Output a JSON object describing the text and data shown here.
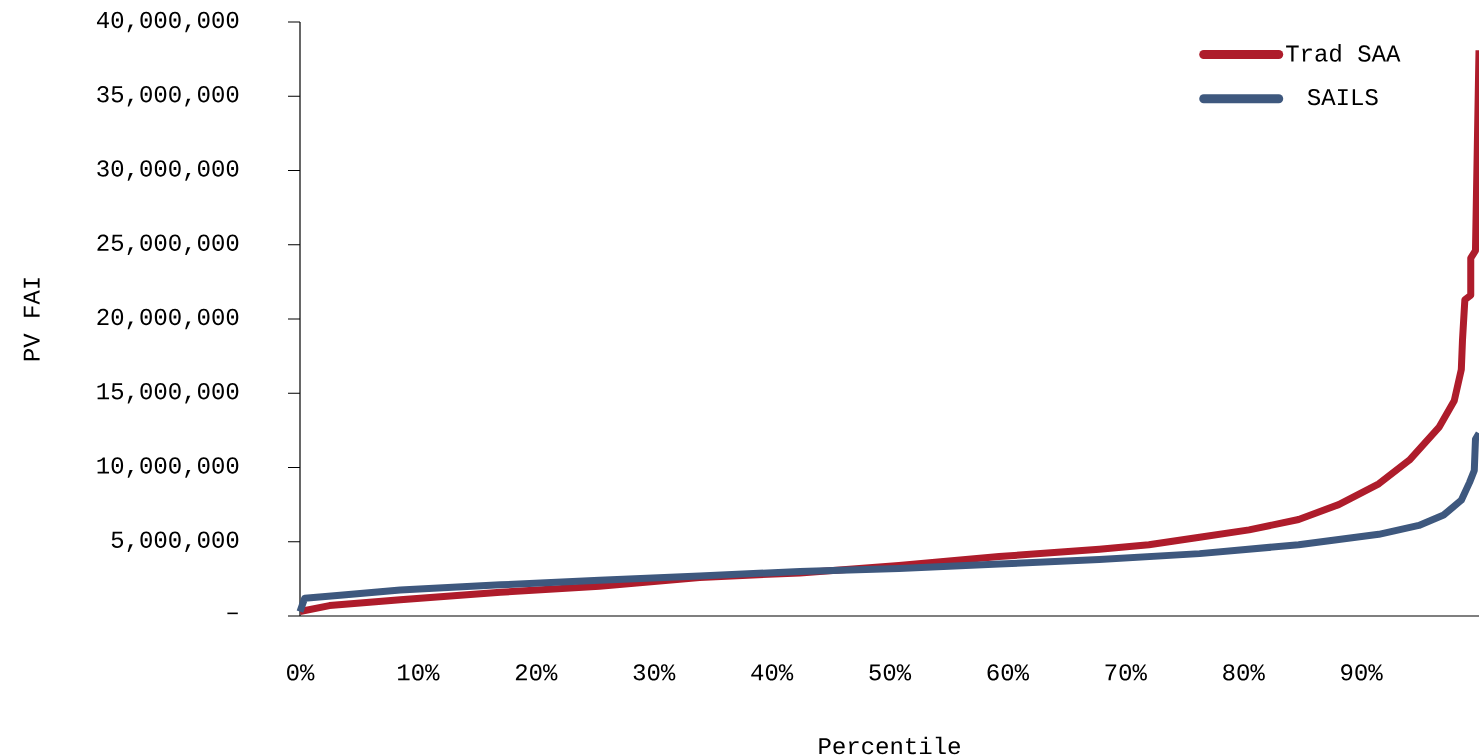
{
  "chart_data": {
    "type": "line",
    "xlabel": "Percentile",
    "ylabel": "PV FAI",
    "xlim": [
      0,
      100
    ],
    "ylim": [
      0,
      40000000
    ],
    "xticks": [
      {
        "value": 0,
        "label": "0%"
      },
      {
        "value": 10,
        "label": "10%"
      },
      {
        "value": 20,
        "label": "20%"
      },
      {
        "value": 30,
        "label": "30%"
      },
      {
        "value": 40,
        "label": "40%"
      },
      {
        "value": 50,
        "label": "50%"
      },
      {
        "value": 60,
        "label": "60%"
      },
      {
        "value": 70,
        "label": "70%"
      },
      {
        "value": 80,
        "label": "80%"
      },
      {
        "value": 90,
        "label": "90%"
      }
    ],
    "yticks": [
      {
        "value": 0,
        "label": "–"
      },
      {
        "value": 5000000,
        "label": "5,000,000"
      },
      {
        "value": 10000000,
        "label": "10,000,000"
      },
      {
        "value": 15000000,
        "label": "15,000,000"
      },
      {
        "value": 20000000,
        "label": "20,000,000"
      },
      {
        "value": 25000000,
        "label": "25,000,000"
      },
      {
        "value": 30000000,
        "label": "30,000,000"
      },
      {
        "value": 35000000,
        "label": "35,000,000"
      },
      {
        "value": 40000000,
        "label": "40,000,000"
      }
    ],
    "legend": "top right",
    "series": [
      {
        "name": "Trad SAA",
        "color": "#ae1c2b",
        "x": [
          0,
          2.5,
          8.5,
          17,
          25.4,
          33.9,
          42.4,
          50.8,
          59.3,
          67.8,
          72,
          76.3,
          80.5,
          84.7,
          88.1,
          91.5,
          94.1,
          96.6,
          97.9,
          98.5,
          98.6,
          98.8,
          99.3,
          99.3,
          99.7,
          100
        ],
        "values": [
          300000,
          700000,
          1100000,
          1600000,
          2000000,
          2600000,
          2900000,
          3400000,
          4000000,
          4500000,
          4800000,
          5300000,
          5800000,
          6500000,
          7500000,
          8900000,
          10500000,
          12700000,
          14500000,
          16600000,
          18600000,
          21300000,
          21600000,
          24100000,
          24600000,
          38100000
        ]
      },
      {
        "name": "SAILS",
        "color": "#3e587e",
        "x": [
          0,
          0.4,
          3.4,
          8.5,
          17,
          25.4,
          33.9,
          42.4,
          50.8,
          59.3,
          67.8,
          76.3,
          84.7,
          91.5,
          94.9,
          97,
          98.5,
          99.2,
          99.6,
          99.7,
          100
        ],
        "values": [
          300000,
          1200000,
          1400000,
          1750000,
          2100000,
          2400000,
          2700000,
          3000000,
          3200000,
          3500000,
          3800000,
          4200000,
          4800000,
          5500000,
          6100000,
          6800000,
          7800000,
          9000000,
          9800000,
          11900000,
          12300000
        ]
      }
    ]
  }
}
